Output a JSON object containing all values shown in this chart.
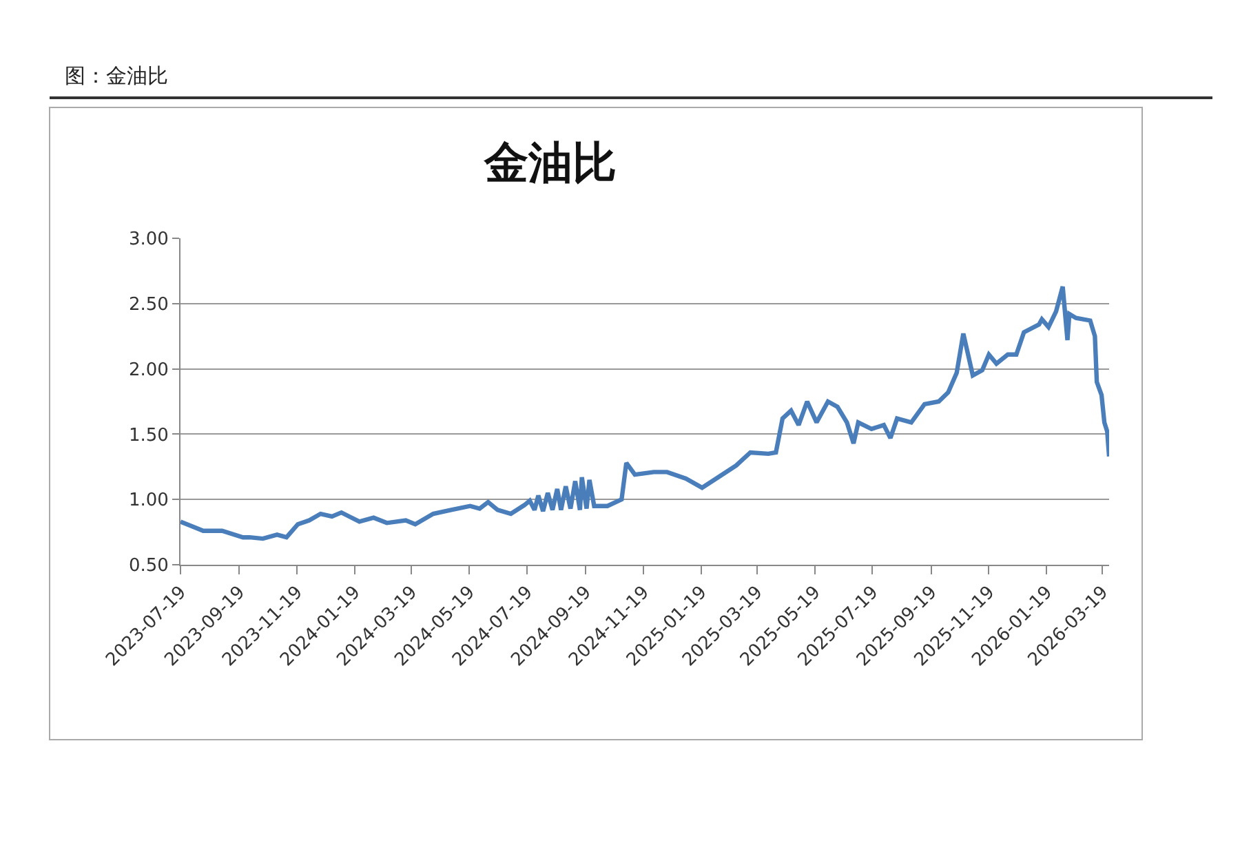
{
  "chart_data": {
    "type": "line",
    "title": "金油比",
    "subtitle": "图：金油比",
    "x": [
      "2023-07-19",
      "2023-08-12",
      "2023-09-01",
      "2023-09-23",
      "2023-09-30",
      "2023-10-14",
      "2023-10-29",
      "2023-11-08",
      "2023-11-20",
      "2023-12-02",
      "2023-12-14",
      "2023-12-26",
      "2024-01-05",
      "2024-01-24",
      "2024-02-08",
      "2024-02-22",
      "2024-03-13",
      "2024-03-23",
      "2024-04-11",
      "2024-04-30",
      "2024-05-20",
      "2024-05-30",
      "2024-06-08",
      "2024-06-18",
      "2024-07-02",
      "2024-07-17",
      "2024-07-22",
      "2024-07-27",
      "2024-07-31",
      "2024-08-05",
      "2024-08-10",
      "2024-08-15",
      "2024-08-20",
      "2024-08-24",
      "2024-08-29",
      "2024-09-03",
      "2024-09-08",
      "2024-09-13",
      "2024-09-15",
      "2024-09-20",
      "2024-09-23",
      "2024-09-28",
      "2024-10-12",
      "2024-10-27",
      "2024-11-01",
      "2024-11-10",
      "2024-11-30",
      "2024-12-14",
      "2025-01-03",
      "2025-01-20",
      "2025-02-06",
      "2025-02-25",
      "2025-03-12",
      "2025-03-31",
      "2025-04-08",
      "2025-04-15",
      "2025-04-24",
      "2025-05-02",
      "2025-05-11",
      "2025-05-21",
      "2025-06-02",
      "2025-06-12",
      "2025-06-22",
      "2025-06-29",
      "2025-07-04",
      "2025-07-18",
      "2025-07-31",
      "2025-08-07",
      "2025-08-14",
      "2025-08-29",
      "2025-09-12",
      "2025-09-27",
      "2025-10-07",
      "2025-10-16",
      "2025-10-23",
      "2025-11-02",
      "2025-11-12",
      "2025-11-19",
      "2025-11-27",
      "2025-12-09",
      "2025-12-18",
      "2025-12-26",
      "2026-01-11",
      "2026-01-14",
      "2026-01-21",
      "2026-01-29",
      "2026-02-05",
      "2026-02-10",
      "2026-02-12",
      "2026-02-19",
      "2026-03-06",
      "2026-03-11",
      "2026-03-13",
      "2026-03-18",
      "2026-03-21",
      "2026-03-24",
      "2026-03-26"
    ],
    "series": [
      {
        "color": "#4a7ebb",
        "values": [
          0.83,
          0.76,
          0.76,
          0.71,
          0.71,
          0.7,
          0.73,
          0.71,
          0.81,
          0.84,
          0.89,
          0.87,
          0.9,
          0.83,
          0.86,
          0.82,
          0.84,
          0.81,
          0.89,
          0.92,
          0.95,
          0.93,
          0.98,
          0.92,
          0.89,
          0.96,
          0.99,
          0.92,
          1.03,
          0.91,
          1.05,
          0.92,
          1.08,
          0.92,
          1.1,
          0.93,
          1.14,
          0.92,
          1.17,
          0.93,
          1.15,
          0.95,
          0.95,
          1.0,
          1.28,
          1.19,
          1.21,
          1.21,
          1.16,
          1.09,
          1.17,
          1.26,
          1.36,
          1.35,
          1.36,
          1.62,
          1.68,
          1.57,
          1.75,
          1.59,
          1.75,
          1.71,
          1.59,
          1.43,
          1.59,
          1.54,
          1.57,
          1.47,
          1.62,
          1.59,
          1.73,
          1.75,
          1.82,
          1.97,
          2.27,
          1.95,
          1.99,
          2.11,
          2.04,
          2.11,
          2.11,
          2.28,
          2.34,
          2.38,
          2.32,
          2.44,
          2.63,
          2.22,
          2.42,
          2.39,
          2.37,
          2.25,
          1.9,
          1.8,
          1.59,
          1.52,
          1.33
        ]
      }
    ],
    "xlim": [
      "2023-07-19",
      "2026-03-26"
    ],
    "xticks": [
      "2023-07-19",
      "2023-09-19",
      "2023-11-19",
      "2024-01-19",
      "2024-03-19",
      "2024-05-19",
      "2024-07-19",
      "2024-09-19",
      "2024-11-19",
      "2025-01-19",
      "2025-03-19",
      "2025-05-19",
      "2025-07-19",
      "2025-09-19",
      "2025-11-19",
      "2026-01-19",
      "2026-03-19"
    ],
    "ylim": [
      0.5,
      3.0
    ],
    "yticks": [
      {
        "value": 0.5,
        "label": "0.50"
      },
      {
        "value": 1.0,
        "label": "1.00"
      },
      {
        "value": 1.5,
        "label": "1.50"
      },
      {
        "value": 2.0,
        "label": "2.00"
      },
      {
        "value": 2.5,
        "label": "2.50"
      },
      {
        "value": 3.0,
        "label": "3.00"
      }
    ],
    "grid": "y",
    "line_style": "solid"
  }
}
